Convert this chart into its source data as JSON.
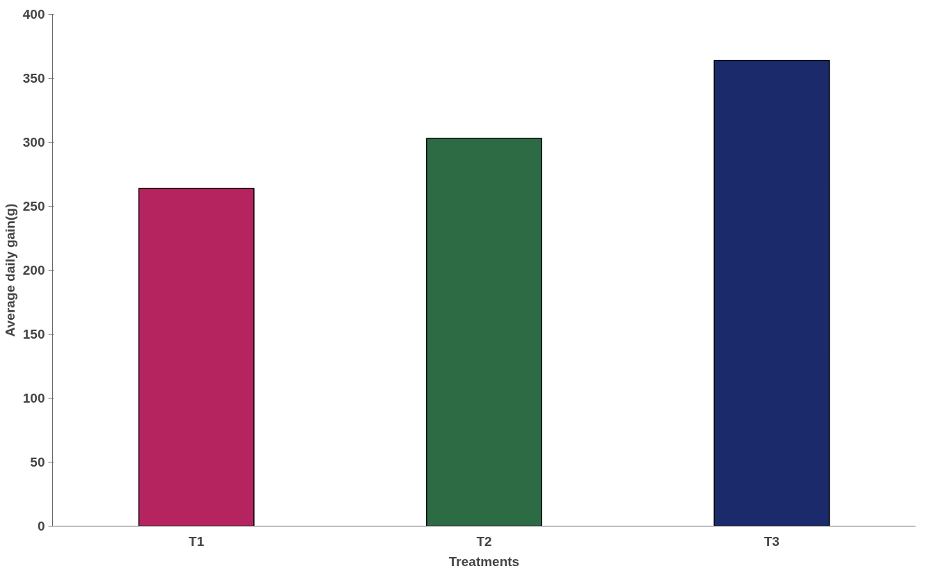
{
  "chart_data": {
    "type": "bar",
    "xlabel": "Treatments",
    "ylabel": "Average daily gain(g)",
    "categories": [
      "T1",
      "T2",
      "T3"
    ],
    "values": [
      264,
      303,
      364
    ],
    "colors": [
      "#b5245e",
      "#2d6b45",
      "#1b2a6b"
    ],
    "ylim": [
      0,
      400
    ],
    "yticks": [
      0,
      50,
      100,
      150,
      200,
      250,
      300,
      350,
      400
    ],
    "grid": false
  }
}
